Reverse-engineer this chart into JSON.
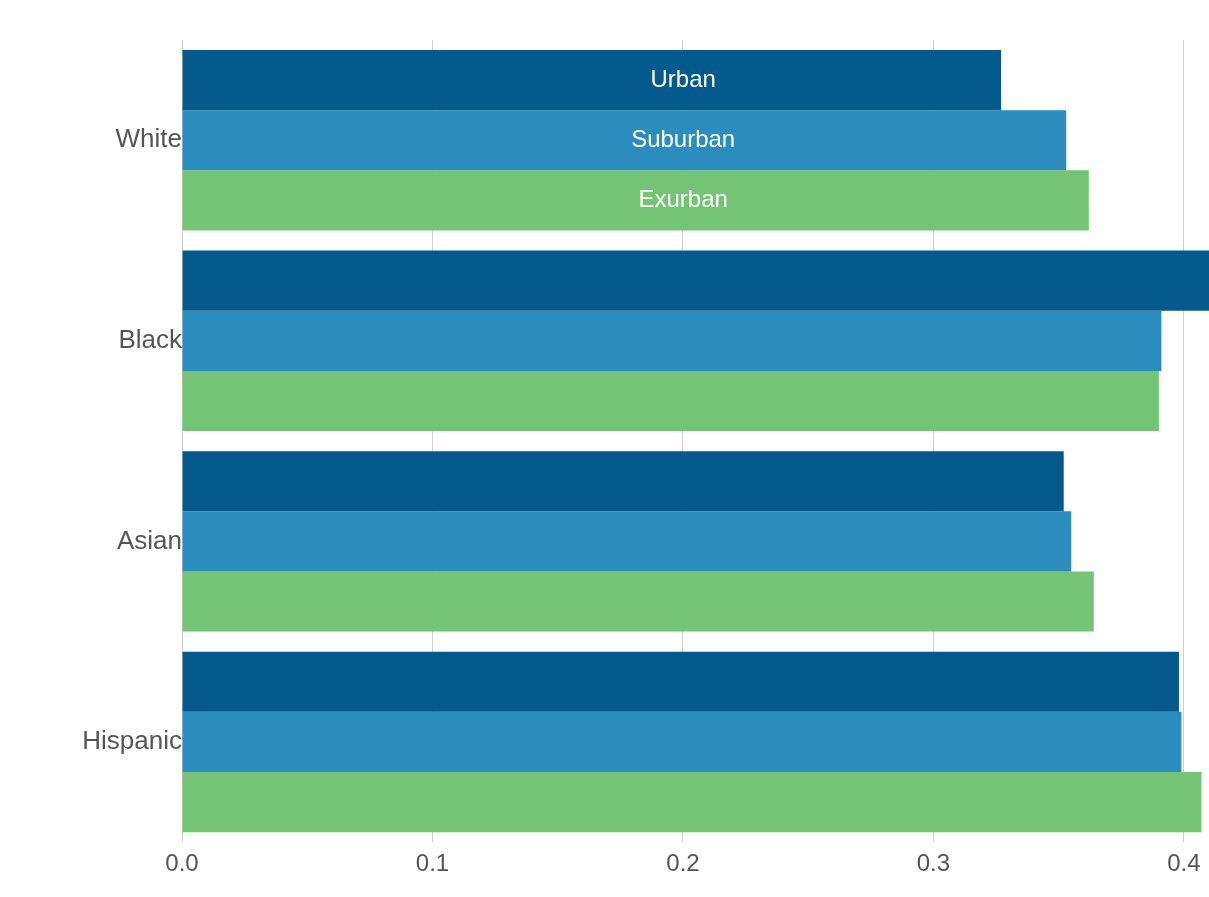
{
  "chart_data": {
    "type": "bar",
    "orientation": "horizontal",
    "categories": [
      "White",
      "Black",
      "Asian",
      "Hispanic"
    ],
    "series": [
      {
        "name": "Urban",
        "color": "#045a8d",
        "values": [
          0.327,
          0.41,
          0.352,
          0.398
        ]
      },
      {
        "name": "Suburban",
        "color": "#2b8cbe",
        "values": [
          0.353,
          0.391,
          0.355,
          0.399
        ]
      },
      {
        "name": "Exurban",
        "color": "#74c476",
        "values": [
          0.362,
          0.39,
          0.364,
          0.407
        ]
      }
    ],
    "xlim": [
      0,
      0.41
    ],
    "xticks": [
      {
        "value": 0,
        "label": "0.0"
      },
      {
        "value": 0.1,
        "label": "0.1"
      },
      {
        "value": 0.2,
        "label": "0.2"
      },
      {
        "value": 0.3,
        "label": "0.3"
      },
      {
        "value": 0.4,
        "label": "0.4"
      }
    ],
    "grid": "x",
    "legend": false
  }
}
